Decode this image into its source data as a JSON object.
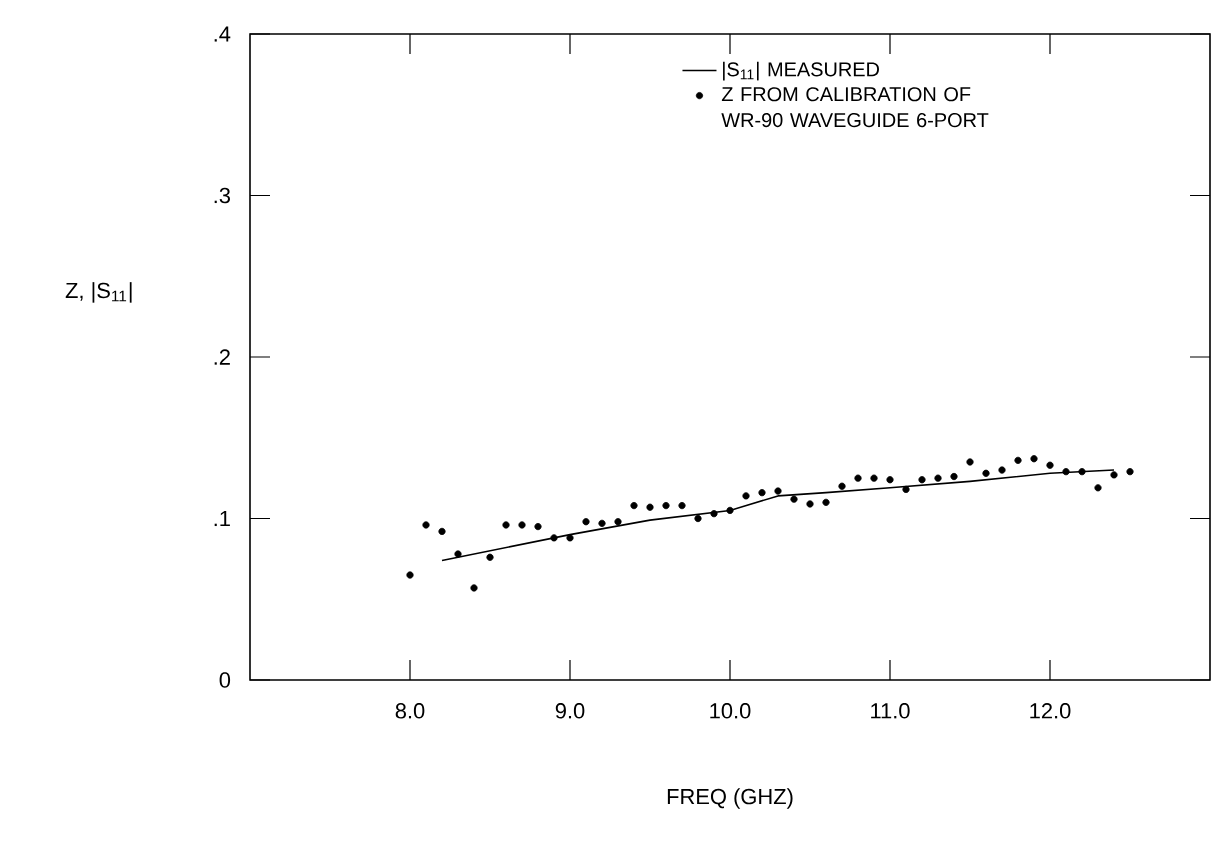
{
  "chart_data": {
    "type": "scatter",
    "xlabel": "FREQ (GHZ)",
    "ylabel": "Z, |S$_{11}$|",
    "xlim": [
      7,
      13
    ],
    "ylim": [
      0,
      0.4
    ],
    "xticks": [
      {
        "value": 8,
        "label": "8.0"
      },
      {
        "value": 9,
        "label": "9.0"
      },
      {
        "value": 10,
        "label": "10.0"
      },
      {
        "value": 11,
        "label": "11.0"
      },
      {
        "value": 12,
        "label": "12.0"
      }
    ],
    "yticks": [
      {
        "value": 0,
        "label": "0"
      },
      {
        "value": 0.1,
        "label": ".1"
      },
      {
        "value": 0.2,
        "label": ".2"
      },
      {
        "value": 0.3,
        "label": ".3"
      },
      {
        "value": 0.4,
        "label": ".4"
      }
    ],
    "grid": false,
    "legend": "top",
    "series": [
      {
        "name": "|S$_{11}$| MEASURED",
        "type": "line",
        "color": "#000000",
        "marker": "none",
        "line_style": "solid",
        "x": [
          8.2,
          8.6,
          9.0,
          9.5,
          10.0,
          10.3,
          10.6,
          11.0,
          11.5,
          12.0,
          12.4
        ],
        "values": [
          0.074,
          0.082,
          0.09,
          0.099,
          0.105,
          0.114,
          0.116,
          0.119,
          0.123,
          0.128,
          0.13
        ]
      },
      {
        "name": "Z FROM CALIBRATION OF WR-90 WAVEGUIDE 6-PORT",
        "color": "#000000",
        "marker": "circle",
        "x": [
          8.0,
          8.1,
          8.2,
          8.3,
          8.4,
          8.5,
          8.6,
          8.7,
          8.8,
          8.9,
          9.0,
          9.1,
          9.2,
          9.3,
          9.4,
          9.5,
          9.6,
          9.7,
          9.8,
          9.9,
          10.0,
          10.1,
          10.2,
          10.3,
          10.4,
          10.5,
          10.6,
          10.7,
          10.8,
          10.9,
          11.0,
          11.1,
          11.2,
          11.3,
          11.4,
          11.5,
          11.6,
          11.7,
          11.8,
          11.9,
          12.0,
          12.1,
          12.2,
          12.3,
          12.4,
          12.5
        ],
        "values": [
          0.065,
          0.096,
          0.092,
          0.078,
          0.057,
          0.076,
          0.096,
          0.096,
          0.095,
          0.088,
          0.088,
          0.098,
          0.097,
          0.098,
          0.108,
          0.107,
          0.108,
          0.108,
          0.1,
          0.103,
          0.105,
          0.114,
          0.116,
          0.117,
          0.112,
          0.109,
          0.11,
          0.12,
          0.125,
          0.125,
          0.124,
          0.118,
          0.124,
          0.125,
          0.126,
          0.135,
          0.128,
          0.13,
          0.136,
          0.137,
          0.133,
          0.129,
          0.129,
          0.119,
          0.127,
          0.129
        ]
      }
    ]
  }
}
